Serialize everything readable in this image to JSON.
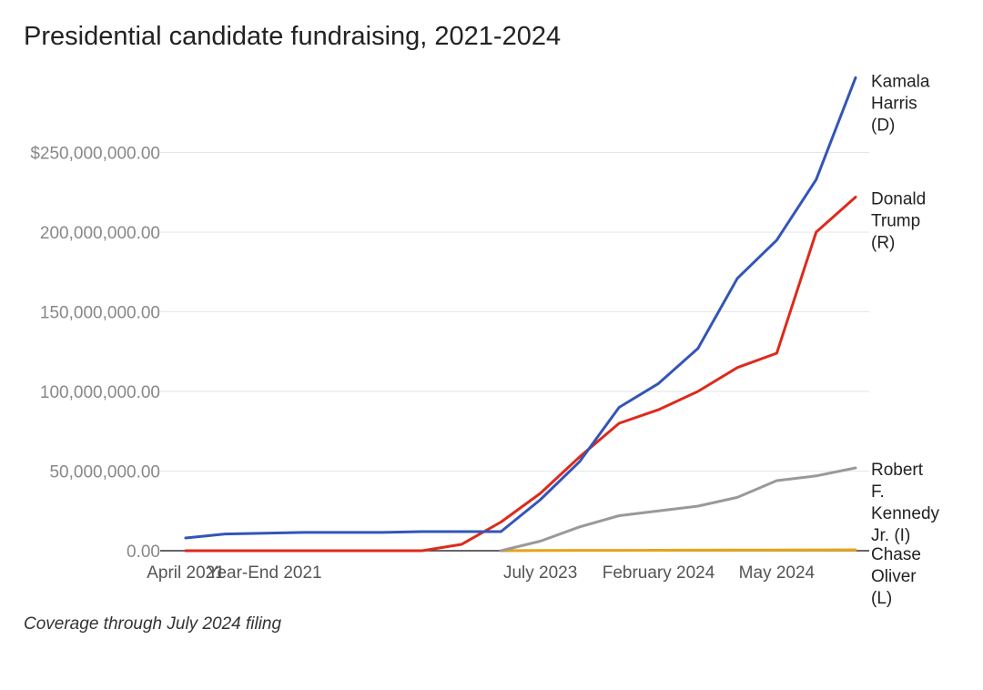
{
  "title": "Presidential candidate fundraising, 2021-2024",
  "footnote": "Coverage through July 2024 filing",
  "chart_data": {
    "type": "line",
    "title": "Presidential candidate fundraising, 2021-2024",
    "xlabel": "",
    "ylabel": "",
    "ylim": [
      0,
      300000000
    ],
    "grid": true,
    "legend": "direct labels at line ends (right)",
    "y_ticks": [
      {
        "value": 0,
        "label": "0.00"
      },
      {
        "value": 50000000,
        "label": "50,000,000.00"
      },
      {
        "value": 100000000,
        "label": "100,000,000.00"
      },
      {
        "value": 150000000,
        "label": "150,000,000.00"
      },
      {
        "value": 200000000,
        "label": "200,000,000.00"
      },
      {
        "value": 250000000,
        "label": "$250,000,000.00"
      }
    ],
    "x_tick_labels": [
      {
        "index": 0,
        "label": "April 2021"
      },
      {
        "index": 2,
        "label": "Year-End 2021"
      },
      {
        "index": 9,
        "label": "July 2023"
      },
      {
        "index": 12,
        "label": "February 2024"
      },
      {
        "index": 15,
        "label": "May 2024"
      }
    ],
    "n_points": 18,
    "series": [
      {
        "name": "Kamala Harris (D)",
        "label_lines": [
          "Kamala",
          "Harris",
          "(D)"
        ],
        "color": "#3355b8",
        "values": [
          8000000,
          10500000,
          11000000,
          11500000,
          11500000,
          11500000,
          12000000,
          12000000,
          12000000,
          32000000,
          56000000,
          90000000,
          105000000,
          127000000,
          171000000,
          195000000,
          233000000,
          297000000
        ]
      },
      {
        "name": "Donald Trump (R)",
        "label_lines": [
          "Donald",
          "Trump",
          "(R)"
        ],
        "color": "#dd2a1b",
        "values": [
          0,
          0,
          0,
          0,
          0,
          0,
          0,
          4000000,
          18000000,
          36000000,
          59000000,
          80000000,
          88500000,
          100000000,
          115000000,
          124000000,
          200000000,
          222000000
        ]
      },
      {
        "name": "Robert F. Kennedy Jr. (I)",
        "label_lines": [
          "Robert",
          "F.",
          "Kennedy",
          "Jr. (I)"
        ],
        "color": "#999999",
        "values": [
          null,
          null,
          null,
          null,
          null,
          null,
          null,
          null,
          0,
          6000000,
          15000000,
          22000000,
          25000000,
          28000000,
          33500000,
          44000000,
          47000000,
          52000000
        ]
      },
      {
        "name": "Chase Oliver (L)",
        "label_lines": [
          "Chase",
          "Oliver",
          "(L)"
        ],
        "color": "#e8a317",
        "values": [
          null,
          null,
          null,
          null,
          null,
          null,
          null,
          null,
          0,
          100000,
          200000,
          250000,
          300000,
          350000,
          400000,
          450000,
          500000,
          600000
        ]
      }
    ]
  }
}
